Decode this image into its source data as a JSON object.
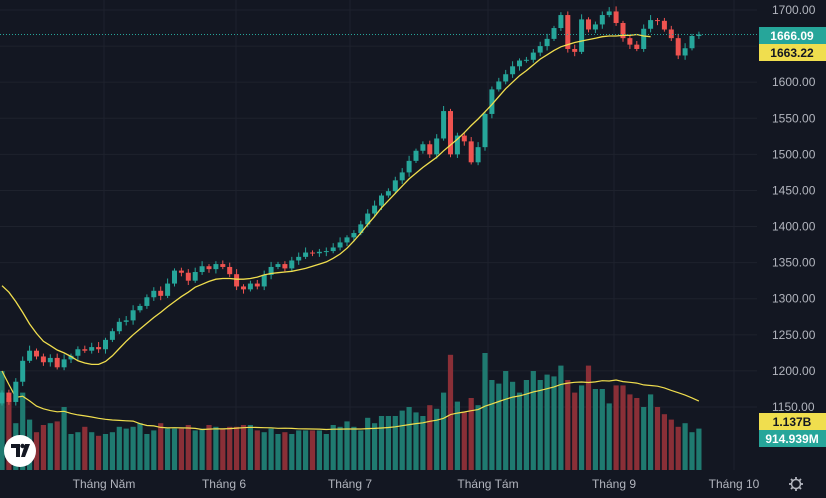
{
  "colors": {
    "background": "#131722",
    "grid": "#1e222d",
    "up": "#26a69a",
    "down": "#ef5350",
    "up_volume": "#1f7a70",
    "down_volume": "#8a2f37",
    "ma_line": "#f0de4e",
    "text": "#b2b5be",
    "last_price_line": "#26a69a"
  },
  "price_axis_labels": [
    "1700.00",
    "1650.00",
    "1600.00",
    "1550.00",
    "1500.00",
    "1450.00",
    "1400.00",
    "1350.00",
    "1300.00",
    "1250.00",
    "1200.00",
    "1150.00"
  ],
  "time_axis_labels": [
    "Tháng Năm",
    "Tháng 6",
    "Tháng 7",
    "Tháng Tám",
    "Tháng 9",
    "Tháng 10"
  ],
  "badges": {
    "last_price": "1666.09",
    "ma_value": "1663.22",
    "volume_ma": "1.137B",
    "volume_last": "914.939M"
  },
  "icons": {
    "logo": "tradingview-logo-icon",
    "settings": "gear-icon"
  },
  "chart_data": {
    "type": "candlestick",
    "title": "",
    "ylim": [
      1130,
      1720
    ],
    "y_ticks": [
      1150,
      1200,
      1250,
      1300,
      1350,
      1400,
      1450,
      1500,
      1550,
      1600,
      1650,
      1700
    ],
    "grid": true,
    "last_price": 1666.09,
    "moving_average_last": 1663.22,
    "volume_ma_last": "1.137B",
    "volume_last": "914.939M",
    "series": [
      {
        "name": "",
        "close": [
          1170,
          1157,
          1185,
          1214,
          1228,
          1220,
          1212,
          1218,
          1205,
          1216,
          1221,
          1230,
          1228,
          1233,
          1230,
          1243,
          1255,
          1268,
          1270,
          1284,
          1290,
          1302,
          1311,
          1304,
          1321,
          1339,
          1336,
          1325,
          1337,
          1345,
          1341,
          1348,
          1344,
          1334,
          1317,
          1313,
          1321,
          1317,
          1333,
          1344,
          1348,
          1342,
          1353,
          1358,
          1364,
          1363,
          1365,
          1366,
          1371,
          1378,
          1385,
          1391,
          1403,
          1418,
          1429,
          1443,
          1449,
          1464,
          1475,
          1491,
          1505,
          1514,
          1500,
          1522,
          1560,
          1500,
          1526,
          1518,
          1489,
          1510,
          1556,
          1590,
          1601,
          1611,
          1622,
          1630,
          1631,
          1641,
          1650,
          1660,
          1675,
          1693,
          1646,
          1642,
          1687,
          1673,
          1680,
          1693,
          1698,
          1682,
          1661,
          1652,
          1646,
          1674,
          1686,
          1685,
          1673,
          1661,
          1637,
          1647,
          1664,
          1666
        ],
        "moving_average": [
          1318,
          1309,
          1296,
          1281,
          1265,
          1252,
          1241,
          1235,
          1229,
          1225,
          1220,
          1214,
          1211,
          1209,
          1209,
          1213,
          1221,
          1231,
          1241,
          1250,
          1258,
          1266,
          1274,
          1281,
          1289,
          1296,
          1303,
          1309,
          1316,
          1320,
          1324,
          1327,
          1328,
          1328,
          1327,
          1327,
          1328,
          1330,
          1333,
          1335,
          1336,
          1337,
          1338,
          1340,
          1342,
          1345,
          1348,
          1351,
          1356,
          1362,
          1370,
          1380,
          1391,
          1403,
          1414,
          1426,
          1436,
          1446,
          1456,
          1466,
          1474,
          1482,
          1489,
          1496,
          1505,
          1513,
          1521,
          1530,
          1540,
          1549,
          1559,
          1569,
          1580,
          1591,
          1600,
          1609,
          1616,
          1624,
          1632,
          1638,
          1644,
          1649,
          1652,
          1655,
          1657,
          1659,
          1661,
          1663,
          1664,
          1664,
          1665,
          1665,
          1666,
          1664,
          1663
        ]
      },
      {
        "name": "",
        "volume_bars": [
          0.55,
          0.4,
          0.26,
          0.43,
          0.28,
          0.21,
          0.25,
          0.26,
          0.27,
          0.35,
          0.2,
          0.21,
          0.24,
          0.21,
          0.19,
          0.2,
          0.21,
          0.24,
          0.23,
          0.24,
          0.26,
          0.2,
          0.22,
          0.26,
          0.23,
          0.23,
          0.23,
          0.25,
          0.22,
          0.23,
          0.25,
          0.24,
          0.23,
          0.24,
          0.24,
          0.25,
          0.25,
          0.22,
          0.21,
          0.23,
          0.2,
          0.21,
          0.2,
          0.22,
          0.22,
          0.22,
          0.22,
          0.2,
          0.25,
          0.24,
          0.27,
          0.24,
          0.22,
          0.29,
          0.26,
          0.3,
          0.3,
          0.3,
          0.33,
          0.35,
          0.32,
          0.3,
          0.36,
          0.34,
          0.43,
          0.64,
          0.38,
          0.32,
          0.4,
          0.36,
          0.65,
          0.5,
          0.48,
          0.55,
          0.49,
          0.43,
          0.5,
          0.55,
          0.5,
          0.53,
          0.52,
          0.58,
          0.5,
          0.43,
          0.47,
          0.58,
          0.45,
          0.45,
          0.37,
          0.47,
          0.47,
          0.42,
          0.4,
          0.35,
          0.42,
          0.35,
          0.31,
          0.28,
          0.24,
          0.26,
          0.21,
          0.23
        ]
      }
    ]
  }
}
